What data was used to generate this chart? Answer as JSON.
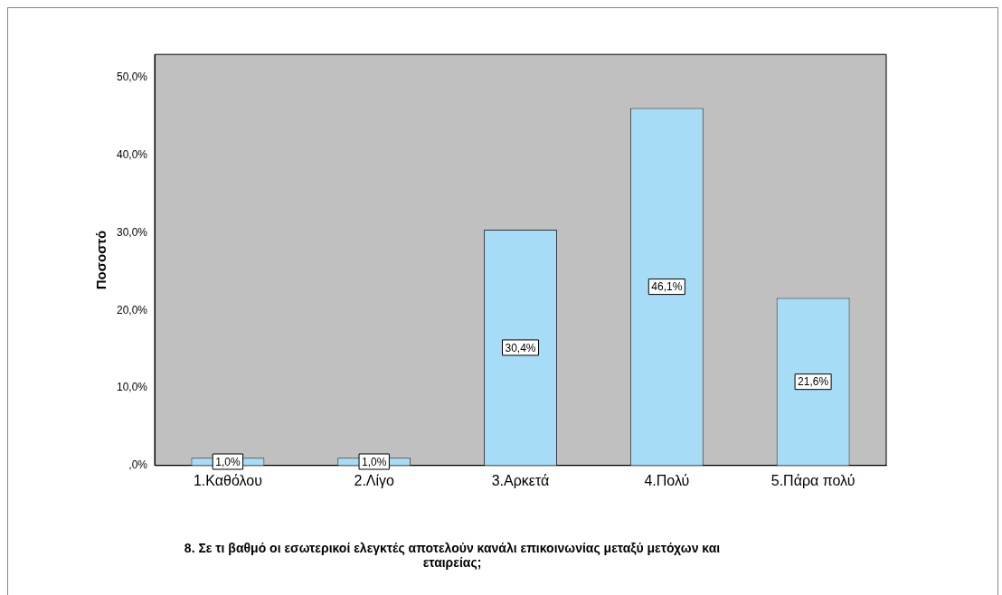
{
  "chart_data": {
    "type": "bar",
    "ylabel": "Ποσοστό",
    "xlabel": "8. Σε τι βαθμό οι εσωτερικοί ελεγκτές αποτελούν κανάλι επικοινωνίας μεταξύ μετόχων και εταιρείας;",
    "categories": [
      "1.Καθόλου",
      "2.Λίγο",
      "3.Αρκετά",
      "4.Πολύ",
      "5.Πάρα πολύ"
    ],
    "values": [
      1.0,
      1.0,
      30.4,
      46.1,
      21.6
    ],
    "value_labels": [
      "1,0%",
      "1,0%",
      "30,4%",
      "46,1%",
      "21,6%"
    ],
    "color": "#a6dcf5",
    "ylim": [
      0,
      53
    ],
    "yticks": [
      {
        "value": 0,
        "label": ",0%"
      },
      {
        "value": 10,
        "label": "10,0%"
      },
      {
        "value": 20,
        "label": "20,0%"
      },
      {
        "value": 30,
        "label": "30,0%"
      },
      {
        "value": 40,
        "label": "40,0%"
      },
      {
        "value": 50,
        "label": "50,0%"
      }
    ],
    "grid": false
  }
}
